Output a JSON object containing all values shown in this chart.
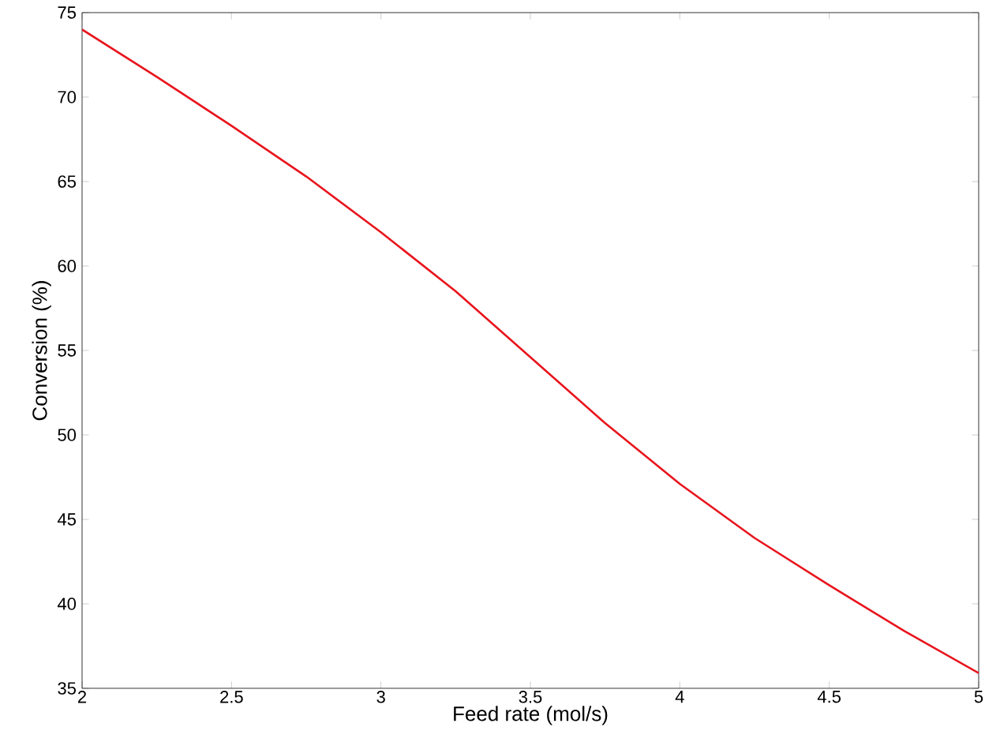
{
  "chart_data": {
    "type": "line",
    "xlabel": "Feed rate (mol/s)",
    "ylabel": "Conversion (%)",
    "x": [
      2,
      2.25,
      2.5,
      2.75,
      3,
      3.25,
      3.5,
      3.75,
      4,
      4.25,
      4.5,
      4.75,
      5
    ],
    "series": [
      {
        "color": "#e8141c",
        "values": [
          74,
          71.2,
          68.3,
          65.3,
          62,
          58.5,
          54.6,
          50.7,
          47.1,
          43.9,
          41.1,
          38.4,
          35.9
        ]
      }
    ],
    "xlim": [
      2,
      5
    ],
    "ylim": [
      35,
      75
    ],
    "xticks": [
      2,
      2.5,
      3,
      3.5,
      4,
      4.5,
      5
    ],
    "yticks": [
      35,
      40,
      45,
      50,
      55,
      60,
      65,
      70,
      75
    ],
    "marker": "none",
    "line_style": "solid"
  }
}
